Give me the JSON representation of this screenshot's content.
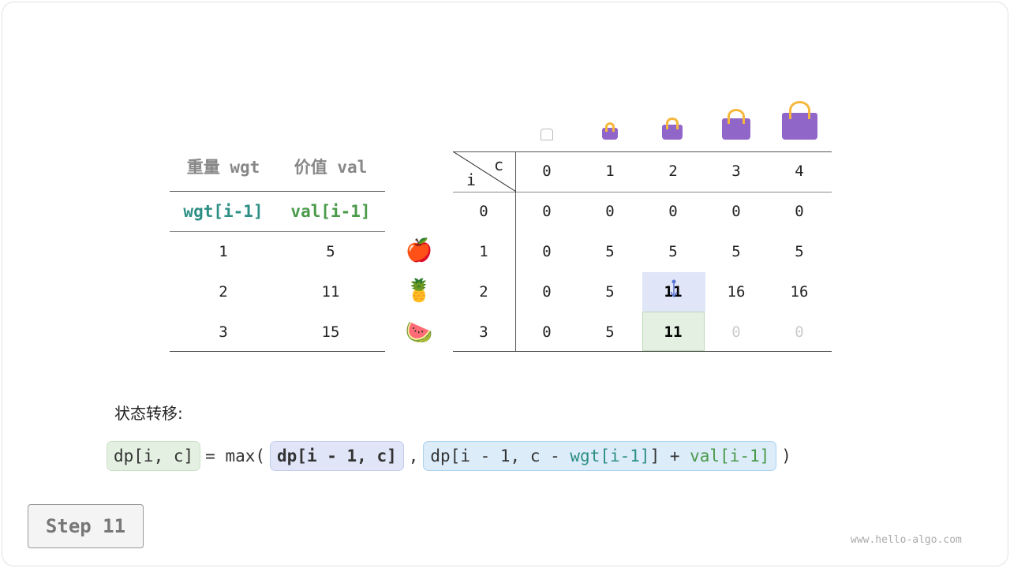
{
  "left_table": {
    "headers": [
      "重量 wgt",
      "价值 val"
    ],
    "subheaders": [
      "wgt[i-1]",
      "val[i-1]"
    ],
    "rows": [
      [
        "1",
        "5"
      ],
      [
        "2",
        "11"
      ],
      [
        "3",
        "15"
      ]
    ],
    "items": [
      "🍎",
      "🍍",
      "🍉"
    ]
  },
  "dp_table": {
    "corner_c": "c",
    "corner_i": "i",
    "cols": [
      "0",
      "1",
      "2",
      "3",
      "4"
    ],
    "row_labels": [
      "0",
      "1",
      "2",
      "3"
    ],
    "rows": [
      [
        "0",
        "0",
        "0",
        "0",
        "0"
      ],
      [
        "0",
        "5",
        "5",
        "5",
        "5"
      ],
      [
        "0",
        "5",
        "11",
        "16",
        "16"
      ],
      [
        "0",
        "5",
        "11",
        "0",
        "0"
      ]
    ]
  },
  "label": "状态转移:",
  "formula": {
    "lhs": "dp[i, c]",
    "eq": "= max(",
    "term1": "dp[i - 1, c]",
    "comma": ",",
    "term2_a": "dp[i - 1, c - ",
    "term2_wgt": "wgt[i-1]",
    "term2_b": "] + ",
    "term2_val": "val[i-1]",
    "close": ")"
  },
  "step": "Step 11",
  "watermark": "www.hello-algo.com",
  "colors": {
    "teal": "#2d8f85",
    "green": "#4a9a4a",
    "bag": "#9066c9",
    "highlight_blue": "#e0e5f8",
    "highlight_green": "#e4f0e2"
  }
}
